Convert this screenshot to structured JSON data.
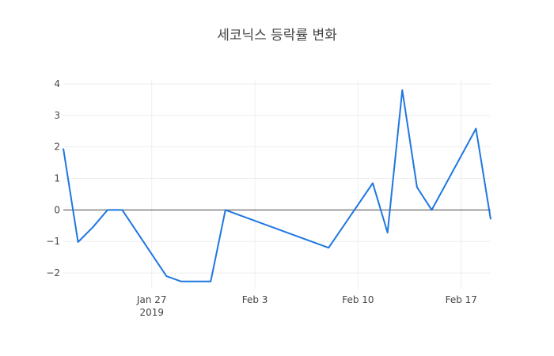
{
  "chart_data": {
    "type": "line",
    "title": "세코닉스 등락률 변화",
    "xlabel": "",
    "ylabel": "",
    "x_axis_type": "date",
    "xlim": [
      "2019-01-21",
      "2019-02-19"
    ],
    "ylim": [
      -2.5,
      4.15
    ],
    "grid": true,
    "zero_line": true,
    "legend": "none",
    "x_ticks": [
      {
        "date": "2019-01-27",
        "label": "Jan 27",
        "sublabel": "2019"
      },
      {
        "date": "2019-02-03",
        "label": "Feb 3",
        "sublabel": ""
      },
      {
        "date": "2019-02-10",
        "label": "Feb 10",
        "sublabel": ""
      },
      {
        "date": "2019-02-17",
        "label": "Feb 17",
        "sublabel": ""
      }
    ],
    "y_ticks": [
      {
        "value": 4,
        "label": "4"
      },
      {
        "value": 3,
        "label": "3"
      },
      {
        "value": 2,
        "label": "2"
      },
      {
        "value": 1,
        "label": "1"
      },
      {
        "value": 0,
        "label": "0"
      },
      {
        "value": -1,
        "label": "−1"
      },
      {
        "value": -2,
        "label": "−2"
      }
    ],
    "series": [
      {
        "color": "#1f77e0",
        "x": [
          "2019-01-21",
          "2019-01-22",
          "2019-01-23",
          "2019-01-24",
          "2019-01-25",
          "2019-01-28",
          "2019-01-29",
          "2019-01-30",
          "2019-01-31",
          "2019-02-01",
          "2019-02-08",
          "2019-02-11",
          "2019-02-12",
          "2019-02-13",
          "2019-02-14",
          "2019-02-15",
          "2019-02-18",
          "2019-02-19"
        ],
        "y": [
          1.95,
          -1.02,
          -0.55,
          0.0,
          0.0,
          -2.1,
          -2.27,
          -2.27,
          -2.27,
          0.0,
          -1.2,
          0.85,
          -0.72,
          3.8,
          0.72,
          0.0,
          2.58,
          -0.3
        ]
      }
    ]
  }
}
